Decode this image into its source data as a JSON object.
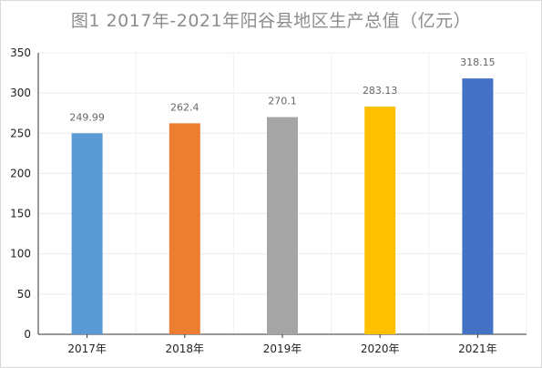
{
  "chart_data": {
    "type": "bar",
    "title": "图1 2017年-2021年阳谷县地区生产总值（亿元）",
    "categories": [
      "2017年",
      "2018年",
      "2019年",
      "2020年",
      "2021年"
    ],
    "values": [
      249.99,
      262.4,
      270.1,
      283.13,
      318.15
    ],
    "data_labels": [
      "249.99",
      "262.4",
      "270.1",
      "283.13",
      "318.15"
    ],
    "colors": [
      "#5b9bd5",
      "#ed7d31",
      "#a5a5a5",
      "#ffc000",
      "#4472c4"
    ],
    "xlabel": "",
    "ylabel": "",
    "ylim": [
      0,
      350
    ],
    "yticks": [
      0,
      50,
      100,
      150,
      200,
      250,
      300,
      350
    ],
    "grid": true,
    "legend": "none"
  }
}
